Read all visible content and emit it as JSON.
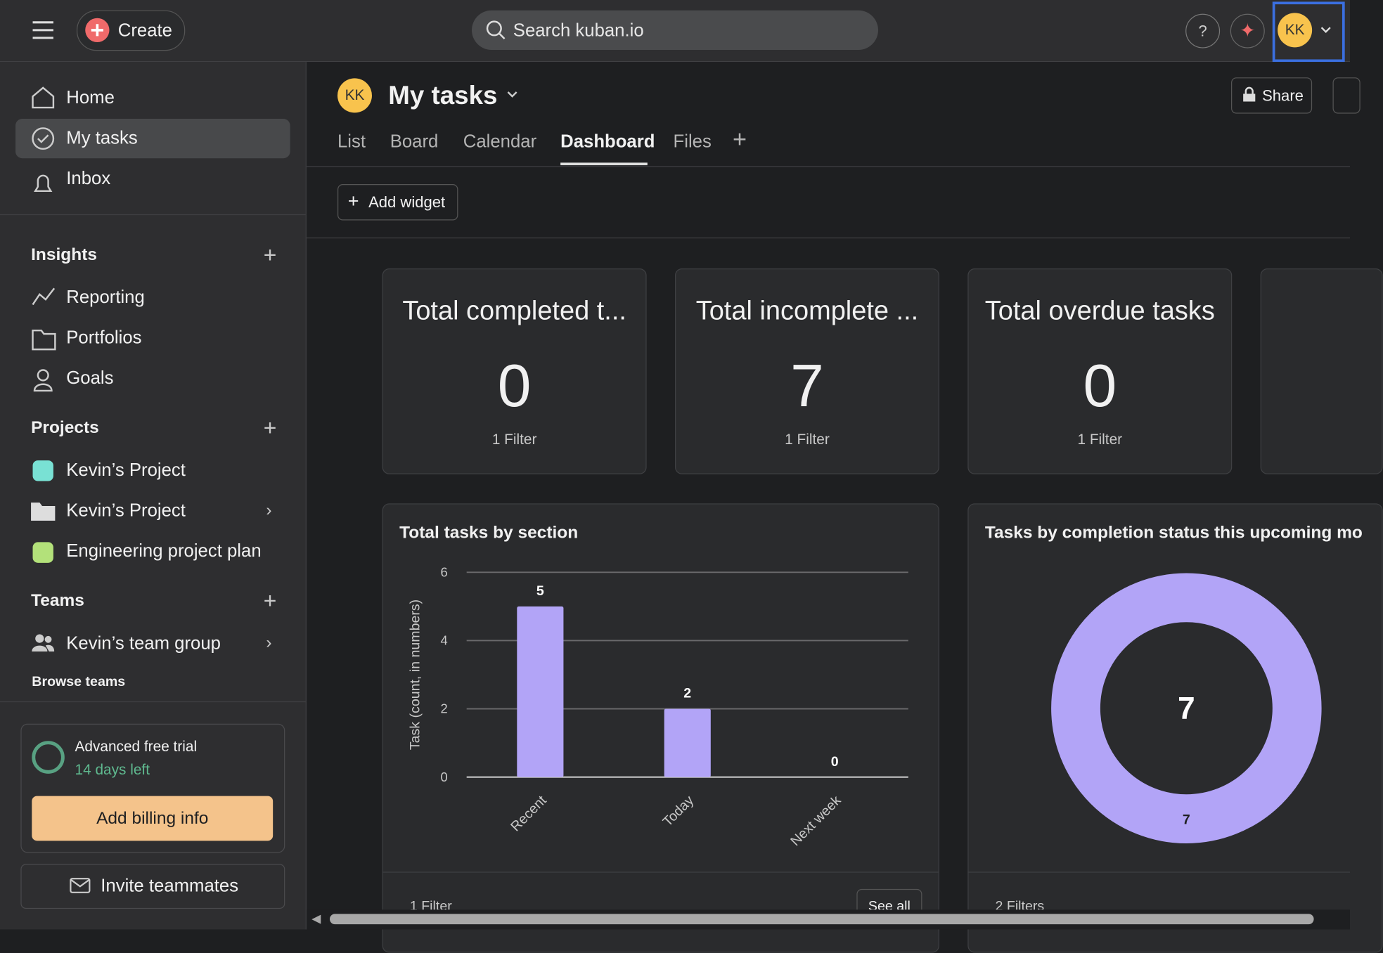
{
  "topbar": {
    "create": "Create",
    "search": "Search kuban.io",
    "avatar": "KK"
  },
  "sidebar": {
    "nav": [
      "Home",
      "My tasks",
      "Inbox"
    ],
    "insights": {
      "title": "Insights",
      "items": [
        "Reporting",
        "Portfolios",
        "Goals"
      ]
    },
    "projects": {
      "title": "Projects",
      "items": [
        "Kevin’s Project",
        "Kevin’s Project",
        "Engineering project plan"
      ]
    },
    "teams": {
      "title": "Teams",
      "items": [
        "Kevin’s team group"
      ],
      "browse": "Browse teams"
    },
    "trial": {
      "title": "Advanced free trial",
      "days": "14 days left",
      "button": "Add billing info"
    },
    "invite": "Invite teammates"
  },
  "header": {
    "avatar": "KK",
    "title": "My tasks",
    "tabs": [
      "List",
      "Board",
      "Calendar",
      "Dashboard",
      "Files"
    ],
    "share": "Share",
    "add_widget": "Add widget"
  },
  "cards": [
    {
      "title": "Total completed t...",
      "value": "0",
      "filter": "1 Filter"
    },
    {
      "title": "Total incomplete ...",
      "value": "7",
      "filter": "1 Filter"
    },
    {
      "title": "Total overdue tasks",
      "value": "0",
      "filter": "1 Filter"
    }
  ],
  "bar_chart": {
    "type": "bar",
    "title": "Total tasks by section",
    "y_label": "Task (count, in numbers)",
    "categories": [
      "Recent",
      "Today",
      "Next week"
    ],
    "values": [
      5,
      2,
      0
    ],
    "ylim": [
      0,
      6
    ],
    "yticks": [
      0,
      2,
      4,
      6
    ],
    "color": "#b2a4f7",
    "grid": true,
    "filter": "1 Filter",
    "see_all": "See all"
  },
  "donut_chart": {
    "type": "pie",
    "title": "Tasks by completion status this upcoming mo",
    "total": "7",
    "values": [
      7
    ],
    "color": "#b2a4f7",
    "filter": "2 Filters"
  }
}
